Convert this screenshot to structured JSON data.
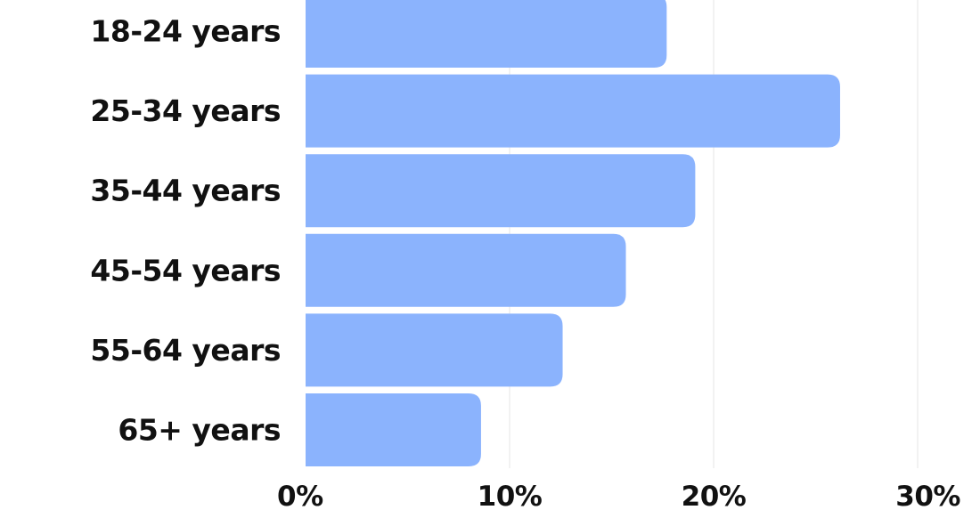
{
  "chart_data": {
    "type": "bar",
    "orientation": "horizontal",
    "categories": [
      "18-24 years",
      "25-34 years",
      "35-44 years",
      "45-54 years",
      "55-64 years",
      "65+ years"
    ],
    "values": [
      17.7,
      26.2,
      19.1,
      15.7,
      12.6,
      8.6
    ],
    "x_ticks": [
      0,
      10,
      20,
      30
    ],
    "x_tick_labels": [
      "0%",
      "10%",
      "20%",
      "30%"
    ],
    "xlim": [
      0,
      30
    ],
    "grid": true,
    "bar_color": "#8bb3fd",
    "gridline_color": "#e6e6e6",
    "text_color": "#111111"
  }
}
